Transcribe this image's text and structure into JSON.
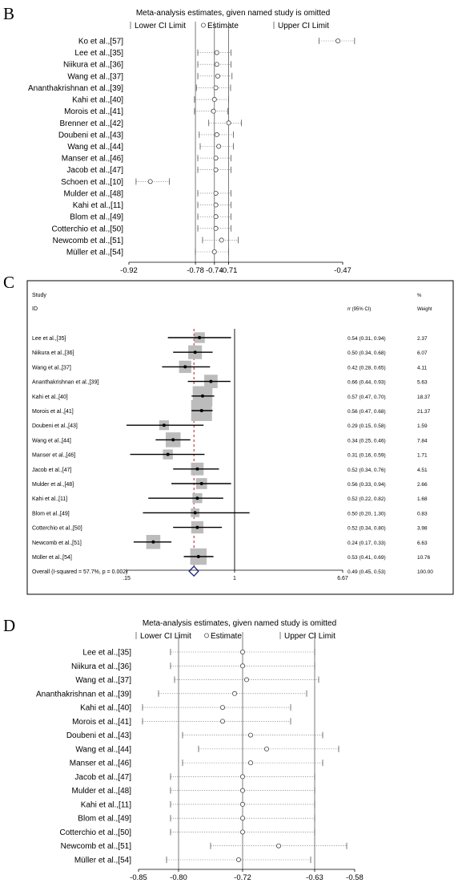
{
  "panels": [
    {
      "letter": "B",
      "type": "sensitivity",
      "title": "Meta-analysis estimates, given named study is omitted",
      "legend": {
        "lower": "Lower CI Limit",
        "estimate": "Estimate",
        "upper": "Upper CI Limit"
      },
      "studies": [
        {
          "label": "Ko et al.,[57]",
          "est": -0.48,
          "lo": -0.52,
          "hi": -0.445
        },
        {
          "label": "Lee et al.,[35]",
          "est": -0.735,
          "lo": -0.775,
          "hi": -0.705
        },
        {
          "label": "Niikura et al.,[36]",
          "est": -0.735,
          "lo": -0.775,
          "hi": -0.705
        },
        {
          "label": "Wang et al.,[37]",
          "est": -0.733,
          "lo": -0.775,
          "hi": -0.703
        },
        {
          "label": "Ananthakrishnan et al.,[39]",
          "est": -0.737,
          "lo": -0.778,
          "hi": -0.706
        },
        {
          "label": "Kahi et al.,[40]",
          "est": -0.74,
          "lo": -0.782,
          "hi": -0.71
        },
        {
          "label": "Morois et al.,[41]",
          "est": -0.742,
          "lo": -0.782,
          "hi": -0.712
        },
        {
          "label": "Brenner et al.,[42]",
          "est": -0.71,
          "lo": -0.752,
          "hi": -0.683
        },
        {
          "label": "Doubeni et al.,[43]",
          "est": -0.735,
          "lo": -0.772,
          "hi": -0.7
        },
        {
          "label": "Wang et al.,[44]",
          "est": -0.731,
          "lo": -0.77,
          "hi": -0.7
        },
        {
          "label": "Manser et al.,[46]",
          "est": -0.737,
          "lo": -0.775,
          "hi": -0.705
        },
        {
          "label": "Jacob et al.,[47]",
          "est": -0.737,
          "lo": -0.775,
          "hi": -0.705
        },
        {
          "label": "Schoen et al.,[10]",
          "est": -0.875,
          "lo": -0.905,
          "hi": -0.835
        },
        {
          "label": "Mulder et al.,[48]",
          "est": -0.737,
          "lo": -0.775,
          "hi": -0.705
        },
        {
          "label": "Kahi et al.,[11]",
          "est": -0.737,
          "lo": -0.775,
          "hi": -0.705
        },
        {
          "label": "Blom et al.,[49]",
          "est": -0.737,
          "lo": -0.775,
          "hi": -0.705
        },
        {
          "label": "Cotterchio et al.,[50]",
          "est": -0.737,
          "lo": -0.775,
          "hi": -0.705
        },
        {
          "label": "Newcomb et al.,[51]",
          "est": -0.725,
          "lo": -0.765,
          "hi": -0.69
        },
        {
          "label": "Müller et al.,[54]",
          "est": -0.74,
          "lo": -0.78,
          "hi": -0.71
        }
      ],
      "axis": {
        "ticks": [
          "-0.92",
          "-0.78",
          "-0.74",
          "-0.71",
          "-0.47"
        ],
        "tick_values": [
          -0.92,
          -0.78,
          -0.74,
          -0.71,
          -0.47
        ],
        "xlim": [
          -0.92,
          -0.47
        ]
      },
      "ref_lines": [
        -0.78,
        -0.74,
        -0.71
      ]
    },
    {
      "letter": "C",
      "type": "forest",
      "header": {
        "study": "Study",
        "id": "ID",
        "or": "rr (95% CI)",
        "pct": "%",
        "weight": "Weight"
      },
      "studies": [
        {
          "label": "Lee et al.,[35]",
          "est": 0.54,
          "lo": 0.31,
          "hi": 0.94,
          "ci": "0.54 (0.31, 0.94)",
          "weight": "2.37"
        },
        {
          "label": "Niikura et al.,[36]",
          "est": 0.5,
          "lo": 0.34,
          "hi": 0.68,
          "ci": "0.50 (0.34, 0.68)",
          "weight": "6.07"
        },
        {
          "label": "Wang et al.,[37]",
          "est": 0.42,
          "lo": 0.28,
          "hi": 0.65,
          "ci": "0.42 (0.28, 0.65)",
          "weight": "4.11"
        },
        {
          "label": "Ananthakrishnan et al.,[39]",
          "est": 0.66,
          "lo": 0.44,
          "hi": 0.93,
          "ci": "0.66 (0.44, 0.93)",
          "weight": "5.63"
        },
        {
          "label": "Kahi et al.,[40]",
          "est": 0.57,
          "lo": 0.47,
          "hi": 0.7,
          "ci": "0.57 (0.47, 0.70)",
          "weight": "18.37"
        },
        {
          "label": "Morois et al.,[41]",
          "est": 0.56,
          "lo": 0.47,
          "hi": 0.68,
          "ci": "0.56 (0.47, 0.68)",
          "weight": "21.37"
        },
        {
          "label": "Doubeni et al.,[43]",
          "est": 0.29,
          "lo": 0.15,
          "hi": 0.58,
          "ci": "0.29 (0.15, 0.58)",
          "weight": "1.59"
        },
        {
          "label": "Wang et al.,[44]",
          "est": 0.34,
          "lo": 0.25,
          "hi": 0.46,
          "ci": "0.34 (0.25, 0.46)",
          "weight": "7.84"
        },
        {
          "label": "Manser et al.,[46]",
          "est": 0.31,
          "lo": 0.16,
          "hi": 0.59,
          "ci": "0.31 (0.16, 0.59)",
          "weight": "1.71"
        },
        {
          "label": "Jacob et al.,[47]",
          "est": 0.52,
          "lo": 0.34,
          "hi": 0.76,
          "ci": "0.52 (0.34, 0.76)",
          "weight": "4.51"
        },
        {
          "label": "Mulder et al.,[48]",
          "est": 0.56,
          "lo": 0.33,
          "hi": 0.94,
          "ci": "0.56 (0.33, 0.94)",
          "weight": "2.66"
        },
        {
          "label": "Kahi et al.,[11]",
          "est": 0.52,
          "lo": 0.22,
          "hi": 0.82,
          "ci": "0.52 (0.22, 0.82)",
          "weight": "1.68"
        },
        {
          "label": "Blom et al.,[49]",
          "est": 0.5,
          "lo": 0.2,
          "hi": 1.3,
          "ci": "0.50 (0.20, 1.30)",
          "weight": "0.83"
        },
        {
          "label": "Cotterchio et al.,[50]",
          "est": 0.52,
          "lo": 0.34,
          "hi": 0.8,
          "ci": "0.52 (0.34, 0.80)",
          "weight": "3.98"
        },
        {
          "label": "Newcomb et al.,[51]",
          "est": 0.24,
          "lo": 0.17,
          "hi": 0.33,
          "ci": "0.24 (0.17, 0.33)",
          "weight": "6.63"
        },
        {
          "label": "Müller et al.,[54]",
          "est": 0.53,
          "lo": 0.41,
          "hi": 0.69,
          "ci": "0.53 (0.41, 0.69)",
          "weight": "10.76"
        }
      ],
      "overall": {
        "label": "Overall  (I-squared = 57.7%, p = 0.002)",
        "est": 0.49,
        "lo": 0.45,
        "hi": 0.53,
        "ci": "0.49 (0.45, 0.53)",
        "weight": "100.00"
      },
      "axis": {
        "ticks": [
          ".15",
          "1",
          "6.67"
        ],
        "tick_values": [
          0.15,
          1,
          6.67
        ],
        "scale": "log",
        "xlim": [
          0.15,
          6.67
        ]
      },
      "null_line": 1
    },
    {
      "letter": "D",
      "type": "sensitivity",
      "title": "Meta-analysis estimates, given named study is omitted",
      "legend": {
        "lower": "Lower CI Limit",
        "estimate": "Estimate",
        "upper": "Upper CI Limit"
      },
      "studies": [
        {
          "label": "Lee et al.,[35]",
          "est": -0.72,
          "lo": -0.81,
          "hi": -0.63
        },
        {
          "label": "Niikura et al.,[36]",
          "est": -0.72,
          "lo": -0.81,
          "hi": -0.63
        },
        {
          "label": "Wang et al.,[37]",
          "est": -0.715,
          "lo": -0.805,
          "hi": -0.625
        },
        {
          "label": "Ananthakrishnan et al.,[39]",
          "est": -0.73,
          "lo": -0.825,
          "hi": -0.64
        },
        {
          "label": "Kahi et al.,[40]",
          "est": -0.745,
          "lo": -0.845,
          "hi": -0.66
        },
        {
          "label": "Morois et al.,[41]",
          "est": -0.745,
          "lo": -0.845,
          "hi": -0.66
        },
        {
          "label": "Doubeni et al.,[43]",
          "est": -0.71,
          "lo": -0.795,
          "hi": -0.62
        },
        {
          "label": "Wang et al.,[44]",
          "est": -0.69,
          "lo": -0.775,
          "hi": -0.6
        },
        {
          "label": "Manser et al.,[46]",
          "est": -0.71,
          "lo": -0.795,
          "hi": -0.62
        },
        {
          "label": "Jacob et al.,[47]",
          "est": -0.72,
          "lo": -0.81,
          "hi": -0.63
        },
        {
          "label": "Mulder et al.,[48]",
          "est": -0.72,
          "lo": -0.81,
          "hi": -0.63
        },
        {
          "label": "Kahi et al.,[11]",
          "est": -0.72,
          "lo": -0.81,
          "hi": -0.63
        },
        {
          "label": "Blom et al.,[49]",
          "est": -0.72,
          "lo": -0.81,
          "hi": -0.63
        },
        {
          "label": "Cotterchio et al.,[50]",
          "est": -0.72,
          "lo": -0.81,
          "hi": -0.63
        },
        {
          "label": "Newcomb et al.,[51]",
          "est": -0.675,
          "lo": -0.76,
          "hi": -0.59
        },
        {
          "label": "Müller et al.,[54]",
          "est": -0.725,
          "lo": -0.815,
          "hi": -0.635
        }
      ],
      "axis": {
        "ticks": [
          "-0.85",
          "-0.80",
          "-0.72",
          "-0.63",
          "-0.58"
        ],
        "tick_values": [
          -0.85,
          -0.8,
          -0.72,
          -0.63,
          -0.58
        ],
        "xlim": [
          -0.85,
          -0.58
        ]
      },
      "ref_lines": [
        -0.8,
        -0.72,
        -0.63
      ]
    }
  ],
  "chart_data": [
    {
      "type": "scatter",
      "title": "Meta-analysis estimates, given named study is omitted",
      "categories": [
        "Ko et al.,[57]",
        "Lee et al.,[35]",
        "Niikura et al.,[36]",
        "Wang et al.,[37]",
        "Ananthakrishnan et al.,[39]",
        "Kahi et al.,[40]",
        "Morois et al.,[41]",
        "Brenner et al.,[42]",
        "Doubeni et al.,[43]",
        "Wang et al.,[44]",
        "Manser et al.,[46]",
        "Jacob et al.,[47]",
        "Schoen et al.,[10]",
        "Mulder et al.,[48]",
        "Kahi et al.,[11]",
        "Blom et al.,[49]",
        "Cotterchio et al.,[50]",
        "Newcomb et al.,[51]",
        "Müller et al.,[54]"
      ],
      "series": [
        {
          "name": "Estimate",
          "values": [
            -0.48,
            -0.735,
            -0.735,
            -0.733,
            -0.737,
            -0.74,
            -0.742,
            -0.71,
            -0.735,
            -0.731,
            -0.737,
            -0.737,
            -0.875,
            -0.737,
            -0.737,
            -0.737,
            -0.737,
            -0.725,
            -0.74
          ]
        },
        {
          "name": "Lower CI Limit",
          "values": [
            -0.52,
            -0.775,
            -0.775,
            -0.775,
            -0.778,
            -0.782,
            -0.782,
            -0.752,
            -0.772,
            -0.77,
            -0.775,
            -0.775,
            -0.905,
            -0.775,
            -0.775,
            -0.775,
            -0.775,
            -0.765,
            -0.78
          ]
        },
        {
          "name": "Upper CI Limit",
          "values": [
            -0.445,
            -0.705,
            -0.705,
            -0.703,
            -0.706,
            -0.71,
            -0.712,
            -0.683,
            -0.7,
            -0.7,
            -0.705,
            -0.705,
            -0.835,
            -0.705,
            -0.705,
            -0.705,
            -0.705,
            -0.69,
            -0.71
          ]
        }
      ],
      "xlim": [
        -0.92,
        -0.47
      ]
    },
    {
      "type": "scatter",
      "categories": [
        "Lee et al.,[35]",
        "Niikura et al.,[36]",
        "Wang et al.,[37]",
        "Ananthakrishnan et al.,[39]",
        "Kahi et al.,[40]",
        "Morois et al.,[41]",
        "Doubeni et al.,[43]",
        "Wang et al.,[44]",
        "Manser et al.,[46]",
        "Jacob et al.,[47]",
        "Mulder et al.,[48]",
        "Kahi et al.,[11]",
        "Blom et al.,[49]",
        "Cotterchio et al.,[50]",
        "Newcomb et al.,[51]",
        "Müller et al.,[54]",
        "Overall"
      ],
      "series": [
        {
          "name": "rr",
          "values": [
            0.54,
            0.5,
            0.42,
            0.66,
            0.57,
            0.56,
            0.29,
            0.34,
            0.31,
            0.52,
            0.56,
            0.52,
            0.5,
            0.52,
            0.24,
            0.53,
            0.49
          ]
        },
        {
          "name": "lower",
          "values": [
            0.31,
            0.34,
            0.28,
            0.44,
            0.47,
            0.47,
            0.15,
            0.25,
            0.16,
            0.34,
            0.33,
            0.22,
            0.2,
            0.34,
            0.17,
            0.41,
            0.45
          ]
        },
        {
          "name": "upper",
          "values": [
            0.94,
            0.68,
            0.65,
            0.93,
            0.7,
            0.68,
            0.58,
            0.46,
            0.59,
            0.76,
            0.94,
            0.82,
            1.3,
            0.8,
            0.33,
            0.69,
            0.53
          ]
        },
        {
          "name": "Weight",
          "values": [
            2.37,
            6.07,
            4.11,
            5.63,
            18.37,
            21.37,
            1.59,
            7.84,
            1.71,
            4.51,
            2.66,
            1.68,
            0.83,
            3.98,
            6.63,
            10.76,
            100.0
          ]
        }
      ],
      "xlim": [
        0.15,
        6.67
      ],
      "xscale": "log"
    },
    {
      "type": "scatter",
      "title": "Meta-analysis estimates, given named study is omitted",
      "categories": [
        "Lee et al.,[35]",
        "Niikura et al.,[36]",
        "Wang et al.,[37]",
        "Ananthakrishnan et al.,[39]",
        "Kahi et al.,[40]",
        "Morois et al.,[41]",
        "Doubeni et al.,[43]",
        "Wang et al.,[44]",
        "Manser et al.,[46]",
        "Jacob et al.,[47]",
        "Mulder et al.,[48]",
        "Kahi et al.,[11]",
        "Blom et al.,[49]",
        "Cotterchio et al.,[50]",
        "Newcomb et al.,[51]",
        "Müller et al.,[54]"
      ],
      "series": [
        {
          "name": "Estimate",
          "values": [
            -0.72,
            -0.72,
            -0.715,
            -0.73,
            -0.745,
            -0.745,
            -0.71,
            -0.69,
            -0.71,
            -0.72,
            -0.72,
            -0.72,
            -0.72,
            -0.72,
            -0.675,
            -0.725
          ]
        },
        {
          "name": "Lower CI Limit",
          "values": [
            -0.81,
            -0.81,
            -0.805,
            -0.825,
            -0.845,
            -0.845,
            -0.795,
            -0.775,
            -0.795,
            -0.81,
            -0.81,
            -0.81,
            -0.81,
            -0.81,
            -0.76,
            -0.815
          ]
        },
        {
          "name": "Upper CI Limit",
          "values": [
            -0.63,
            -0.63,
            -0.625,
            -0.64,
            -0.66,
            -0.66,
            -0.62,
            -0.6,
            -0.62,
            -0.63,
            -0.63,
            -0.63,
            -0.63,
            -0.63,
            -0.59,
            -0.635
          ]
        }
      ],
      "xlim": [
        -0.85,
        -0.58
      ]
    }
  ]
}
